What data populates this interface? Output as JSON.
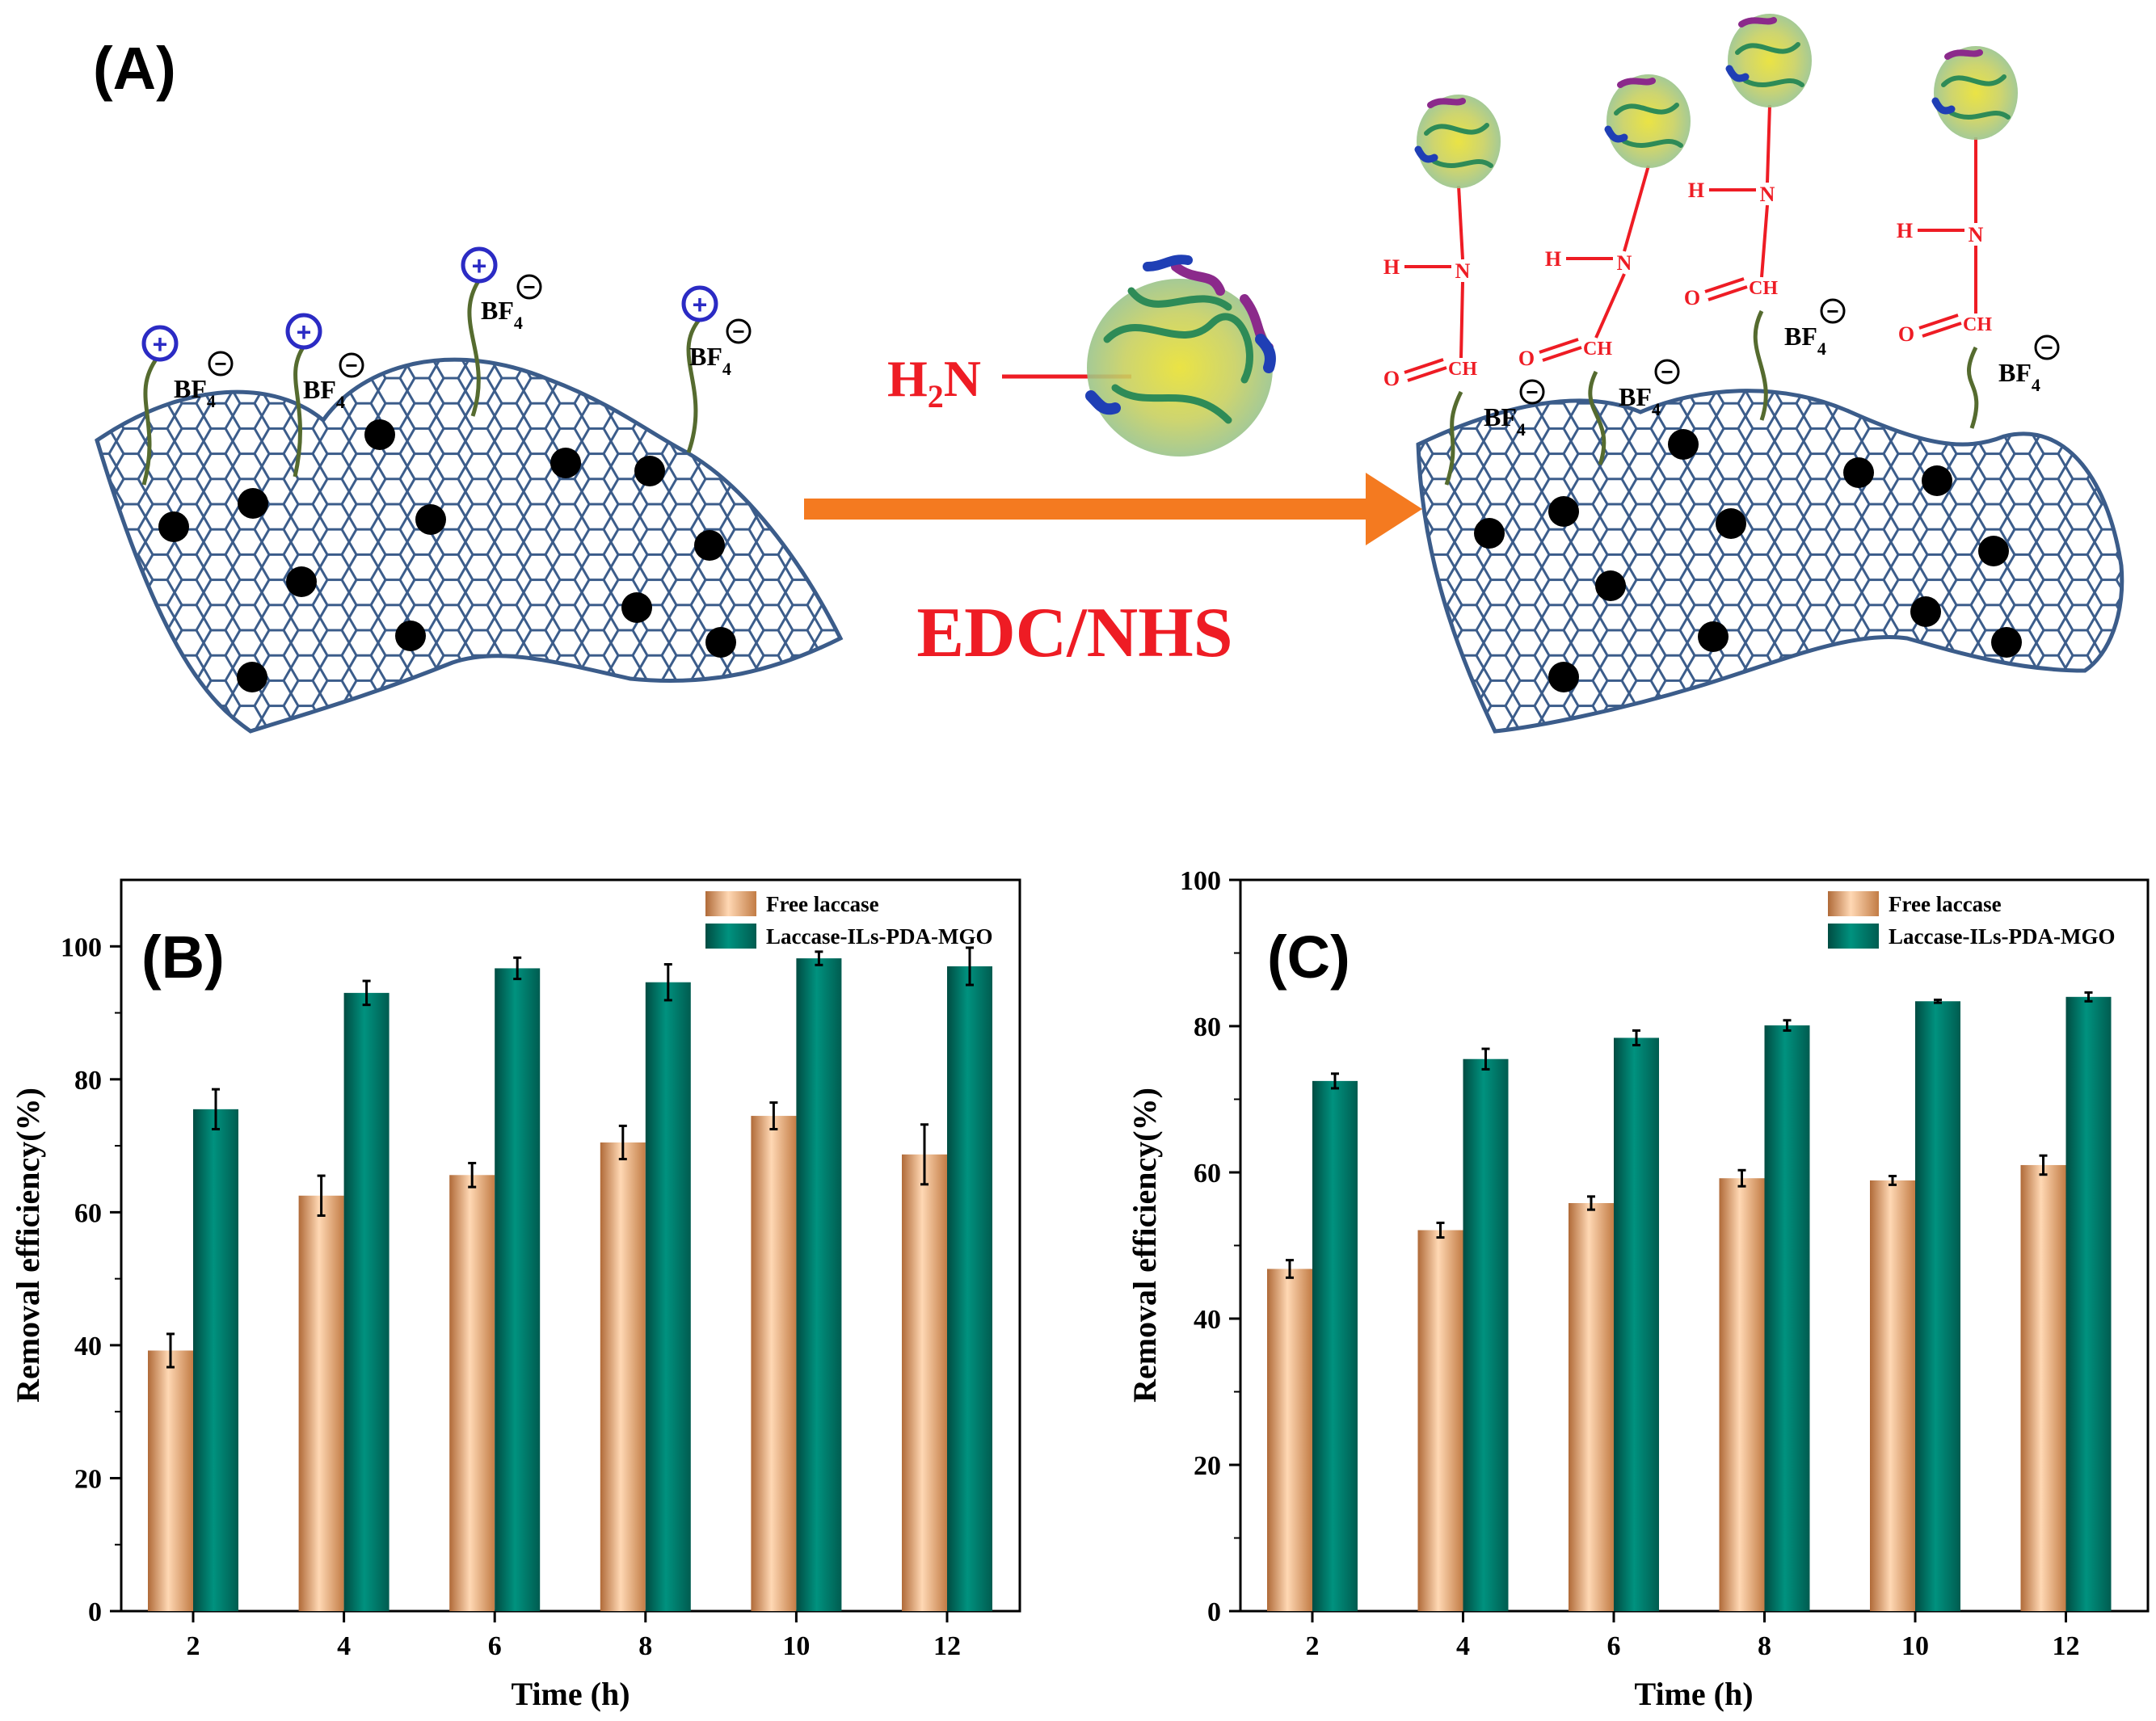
{
  "schematic": {
    "panel_label": "(A)",
    "reagent_label": "EDC/NHS",
    "amine_main": "H",
    "amine_sub": "2",
    "amine_tail": "N",
    "anion_main": "BF",
    "anion_sub": "4",
    "cation_symbol": "+",
    "anion_symbol": "−",
    "linker_atoms": {
      "n": "N",
      "h": "H",
      "o": "O",
      "ch": "CH"
    }
  },
  "colors": {
    "free_laccase": "#f0b888",
    "free_laccase_dark": "#b06a38",
    "immobilized": "#007e6e",
    "immobilized_dark": "#004c42",
    "sheet": "#3b5c8a",
    "linker": "#ee1c24",
    "arrow": "#f47a20",
    "cation": "#2b2bc4",
    "chain": "#556b2f"
  },
  "chart_data": [
    {
      "panel_label": "(B)",
      "type": "bar",
      "xlabel": "Time (h)",
      "ylabel": "Removal efficiency(%)",
      "categories": [
        "2",
        "4",
        "6",
        "8",
        "10",
        "12"
      ],
      "ylim": [
        0,
        110
      ],
      "yticks": [
        "0",
        "20",
        "40",
        "60",
        "80",
        "100"
      ],
      "ytick_values": [
        0,
        20,
        40,
        60,
        80,
        100
      ],
      "legend_position": "top-right",
      "series": [
        {
          "name": "Free laccase",
          "values": [
            39.2,
            62.5,
            65.6,
            70.5,
            74.5,
            68.7
          ],
          "errors": [
            2.5,
            3.0,
            1.8,
            2.5,
            2.0,
            4.5
          ],
          "color": "#f0b888"
        },
        {
          "name": "Laccase-ILs-PDA-MGO",
          "values": [
            75.5,
            93.0,
            96.7,
            94.6,
            98.2,
            97.0
          ],
          "errors": [
            3.0,
            1.8,
            1.6,
            2.7,
            1.0,
            2.8
          ],
          "color": "#007e6e"
        }
      ]
    },
    {
      "panel_label": "(C)",
      "type": "bar",
      "xlabel": "Time (h)",
      "ylabel": "Removal efficiency(%)",
      "categories": [
        "2",
        "4",
        "6",
        "8",
        "10",
        "12"
      ],
      "ylim": [
        0,
        100
      ],
      "yticks": [
        "0",
        "20",
        "40",
        "60",
        "80",
        "100"
      ],
      "ytick_values": [
        0,
        20,
        40,
        60,
        80,
        100
      ],
      "legend_position": "top-right",
      "series": [
        {
          "name": "Free laccase",
          "values": [
            46.8,
            52.1,
            55.8,
            59.2,
            58.9,
            61.0
          ],
          "errors": [
            1.2,
            1.0,
            0.9,
            1.1,
            0.6,
            1.3
          ],
          "color": "#f0b888"
        },
        {
          "name": "Laccase-ILs-PDA-MGO",
          "values": [
            72.5,
            75.5,
            78.4,
            80.1,
            83.4,
            84.0
          ],
          "errors": [
            1.0,
            1.4,
            1.0,
            0.7,
            0.2,
            0.6
          ],
          "color": "#007e6e"
        }
      ]
    }
  ]
}
